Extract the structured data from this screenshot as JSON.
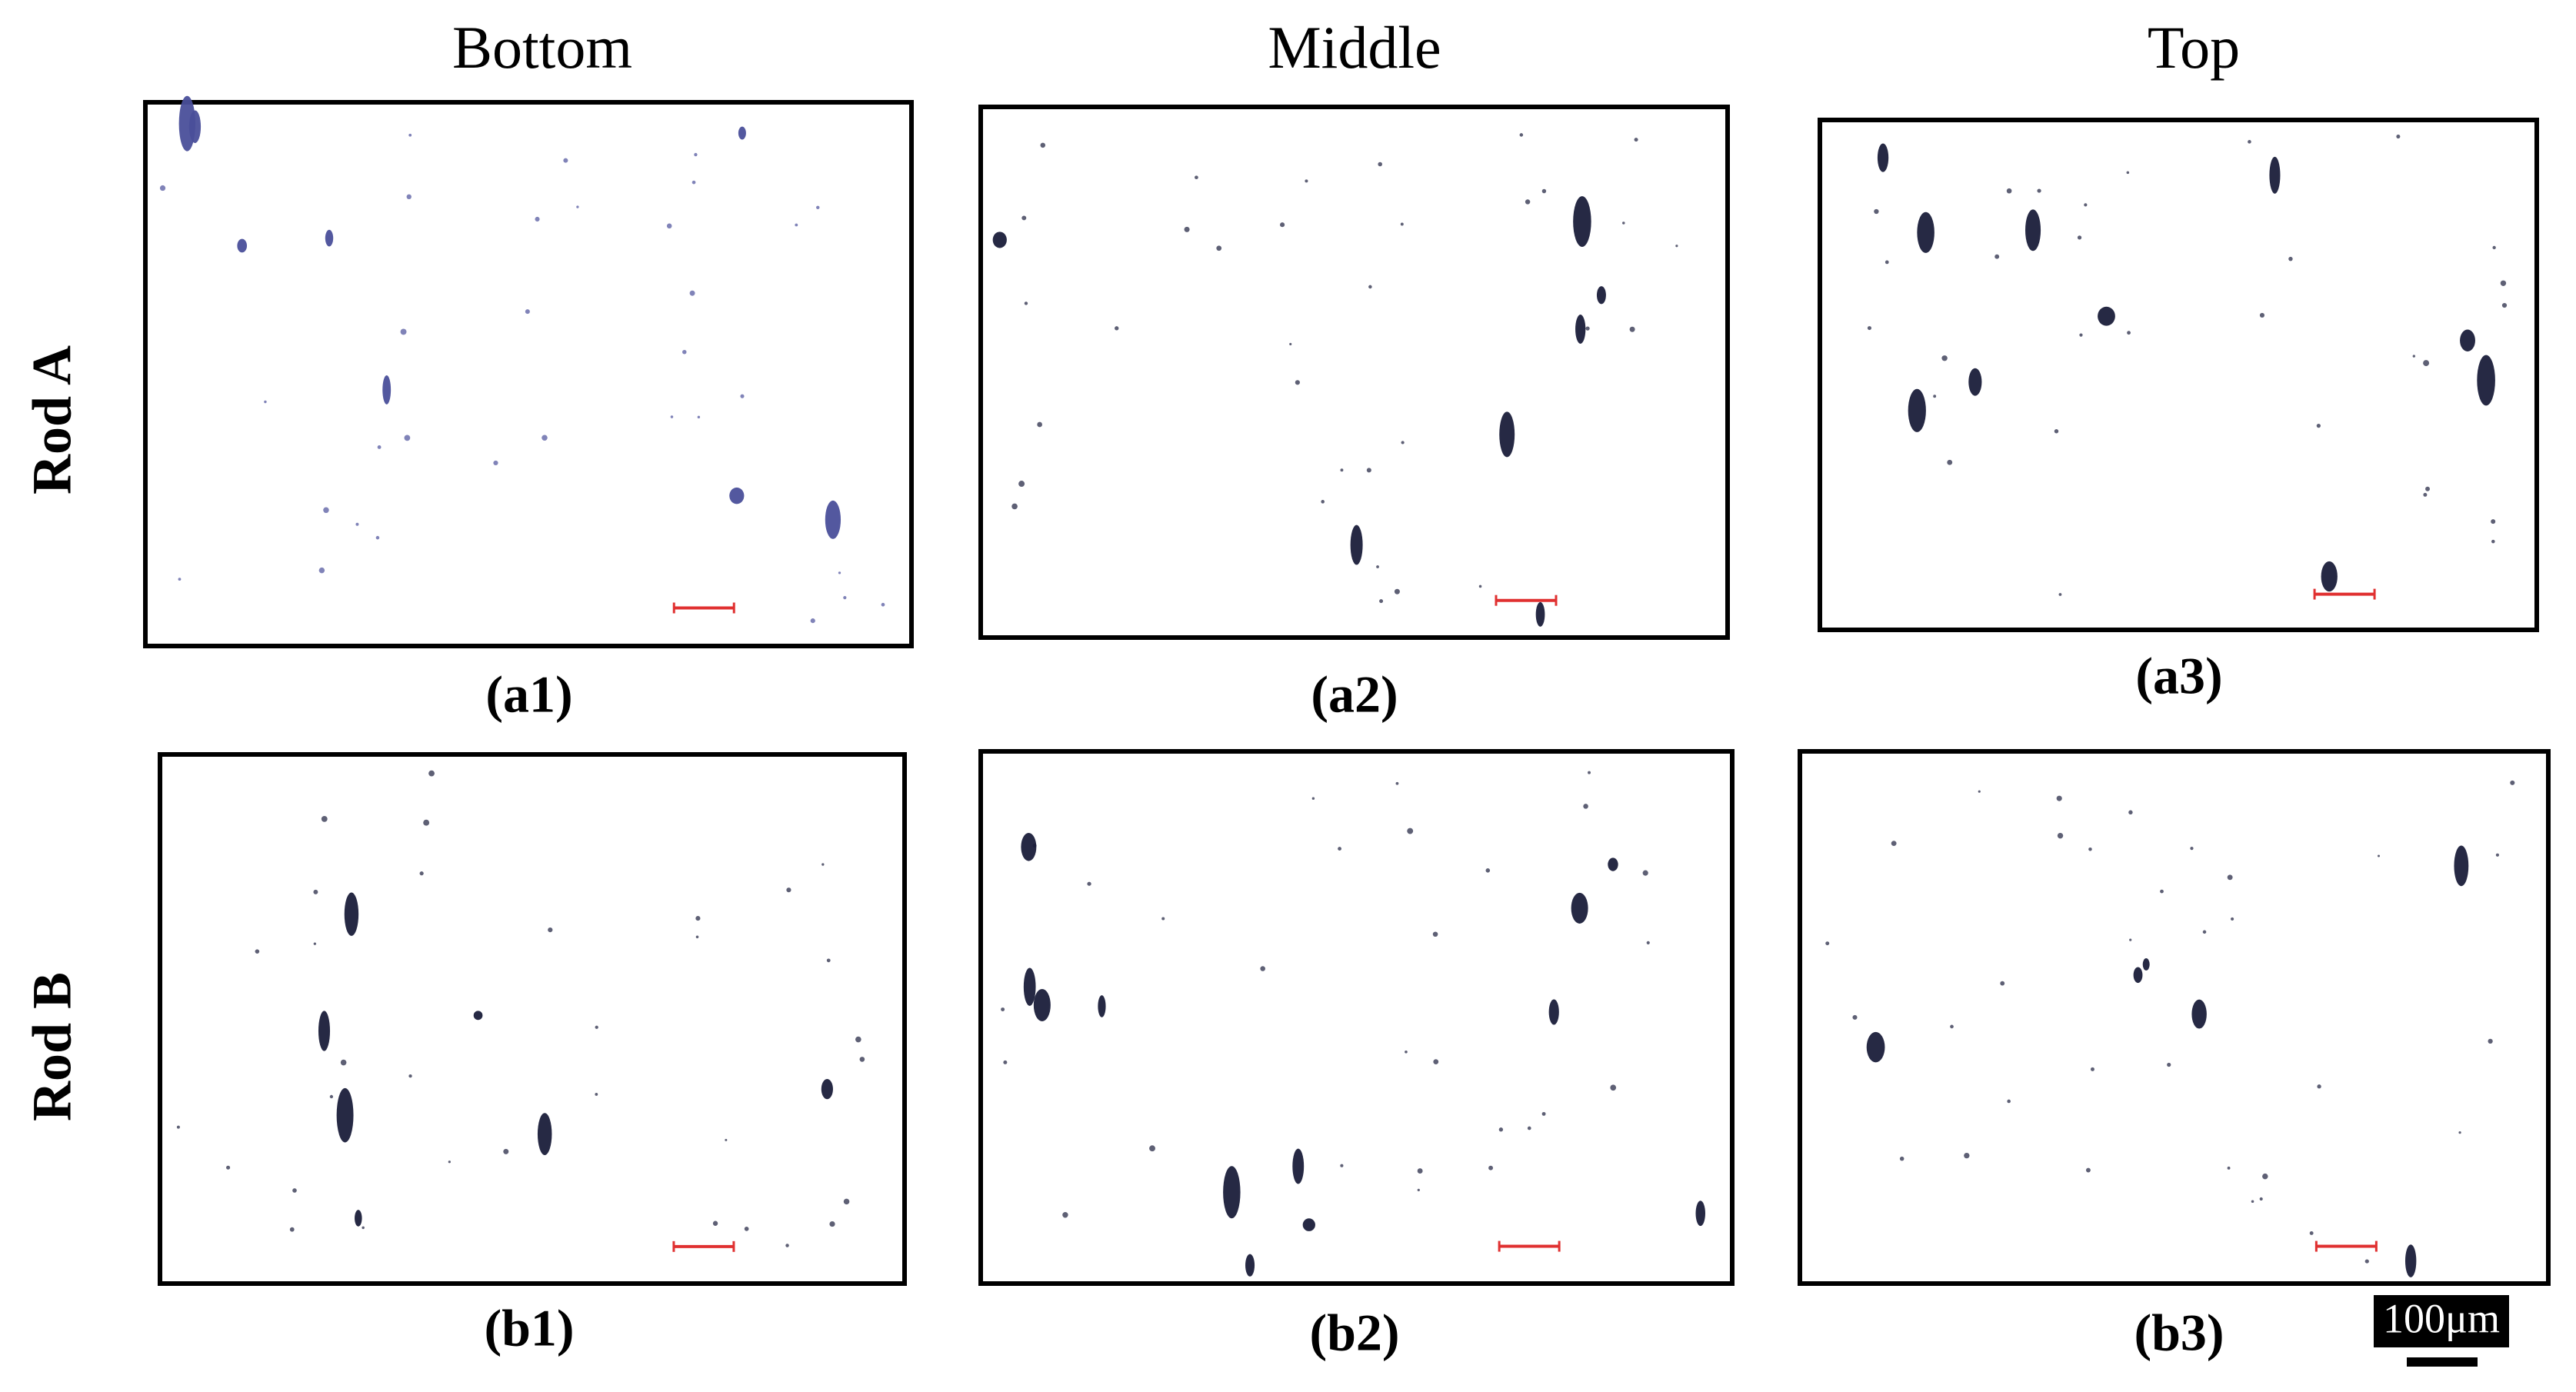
{
  "columns": [
    "Bottom",
    "Middle",
    "Top"
  ],
  "rows": [
    "Rod A",
    "Rod B"
  ],
  "panels": [
    "(a1)",
    "(a2)",
    "(a3)",
    "(b1)",
    "(b2)",
    "(b3)"
  ],
  "scale_bar": "100μm"
}
